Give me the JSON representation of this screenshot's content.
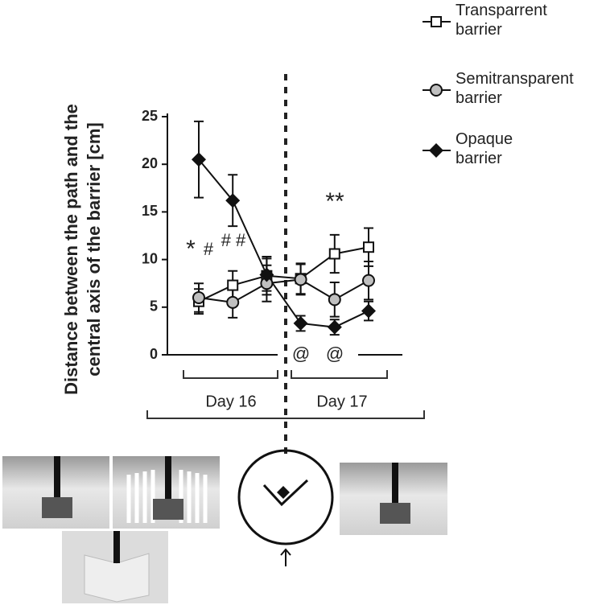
{
  "chart_data": {
    "type": "line",
    "ylabel": [
      "Distance between the path and the",
      "central axis of the barrier  [cm]"
    ],
    "categories": [
      null,
      null,
      null,
      null,
      null,
      null
    ],
    "groups": [
      "Day 16",
      "Day 17"
    ],
    "annotations": [
      "*",
      "#",
      "# #",
      "**",
      "@",
      "@"
    ],
    "ylim": [
      0,
      25
    ],
    "yticks": [
      0,
      5,
      10,
      15,
      20,
      25
    ],
    "series": [
      {
        "name": "Transparrent barrier",
        "color": "#ffffff",
        "marker": "square",
        "values": [
          5.6,
          7.3,
          8.3,
          8.0,
          10.6,
          11.3
        ],
        "errors": [
          1.3,
          1.5,
          2.0,
          1.6,
          2.0,
          2.0
        ]
      },
      {
        "name": "Semitransparent barrier",
        "color": "#c0c0c0",
        "marker": "circle",
        "values": [
          6.0,
          5.5,
          7.5,
          7.9,
          5.8,
          7.8
        ],
        "errors": [
          1.5,
          1.6,
          1.9,
          1.6,
          1.8,
          2.0
        ]
      },
      {
        "name": "Opaque barrier",
        "color": "#111111",
        "marker": "diamond",
        "values": [
          20.5,
          16.2,
          8.4,
          3.3,
          2.9,
          4.6
        ],
        "errors": [
          4.0,
          2.7,
          1.7,
          0.8,
          0.8,
          1.0
        ]
      }
    ]
  }
}
